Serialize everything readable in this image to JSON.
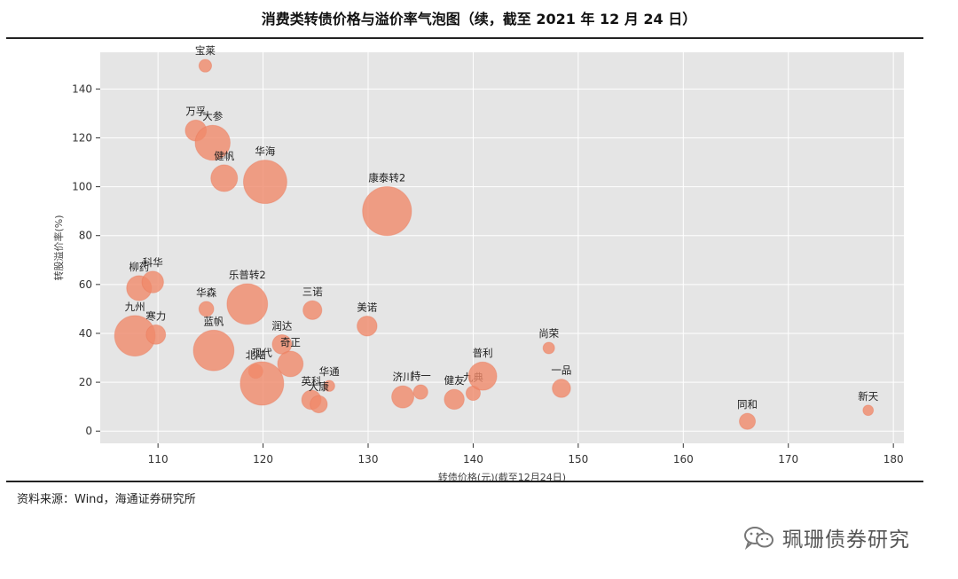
{
  "title": "消费类转债价格与溢价率气泡图（续，截至 2021 年 12 月 24 日）",
  "source": "资料来源：Wind，海通证券研究所",
  "watermark": "珮珊债券研究",
  "chart_data": {
    "type": "scatter",
    "xlabel": "转债价格(元)(截至12月24日)",
    "ylabel": "转股溢价率(%)",
    "xlim": [
      104.5,
      181
    ],
    "ylim": [
      -5,
      155
    ],
    "xticks": [
      110,
      120,
      130,
      140,
      150,
      160,
      170,
      180
    ],
    "yticks": [
      0,
      20,
      40,
      60,
      80,
      100,
      120,
      140
    ],
    "grid": true,
    "colors": {
      "bubble": "#f08a6a",
      "background": "#e5e5e5",
      "grid": "#ffffff"
    },
    "points": [
      {
        "name": "宝莱",
        "x": 114.5,
        "y": 149.5,
        "size": 1
      },
      {
        "name": "万孚",
        "x": 113.6,
        "y": 123,
        "size": 2.5
      },
      {
        "name": "大参",
        "x": 115.2,
        "y": 118,
        "size": 5
      },
      {
        "name": "健帆",
        "x": 116.3,
        "y": 103.5,
        "size": 3.5
      },
      {
        "name": "华海",
        "x": 120.2,
        "y": 102,
        "size": 6.5
      },
      {
        "name": "康泰转2",
        "x": 131.8,
        "y": 90,
        "size": 7.5
      },
      {
        "name": "柳药",
        "x": 108.2,
        "y": 58.5,
        "size": 3.2
      },
      {
        "name": "科华",
        "x": 109.5,
        "y": 61,
        "size": 2.6
      },
      {
        "name": "华森",
        "x": 114.6,
        "y": 50,
        "size": 1.4
      },
      {
        "name": "乐普转2",
        "x": 118.5,
        "y": 52,
        "size": 6
      },
      {
        "name": "三诺",
        "x": 124.7,
        "y": 49.5,
        "size": 2.1
      },
      {
        "name": "九州",
        "x": 107.8,
        "y": 39,
        "size": 6
      },
      {
        "name": "寒力",
        "x": 109.8,
        "y": 39.5,
        "size": 2.2
      },
      {
        "name": "美诺",
        "x": 129.9,
        "y": 43,
        "size": 2.3
      },
      {
        "name": "润达",
        "x": 121.8,
        "y": 35.5,
        "size": 2.2
      },
      {
        "name": "蓝帆",
        "x": 115.3,
        "y": 33,
        "size": 6
      },
      {
        "name": "北陆",
        "x": 119.3,
        "y": 24.5,
        "size": 1.3
      },
      {
        "name": "奇正",
        "x": 122.6,
        "y": 27.5,
        "size": 3.3
      },
      {
        "name": "现代",
        "x": 119.9,
        "y": 19.5,
        "size": 6.5
      },
      {
        "name": "华通",
        "x": 126.3,
        "y": 18.5,
        "size": 0.7
      },
      {
        "name": "英科",
        "x": 124.6,
        "y": 12.8,
        "size": 2.2
      },
      {
        "name": "大康",
        "x": 125.3,
        "y": 11,
        "size": 1.8
      },
      {
        "name": "济川",
        "x": 133.3,
        "y": 14,
        "size": 2.7
      },
      {
        "name": "特一",
        "x": 135,
        "y": 16,
        "size": 1.3
      },
      {
        "name": "健友",
        "x": 138.2,
        "y": 13,
        "size": 2.3
      },
      {
        "name": "九典",
        "x": 140,
        "y": 15.5,
        "size": 1.3
      },
      {
        "name": "普利",
        "x": 140.9,
        "y": 22.5,
        "size": 3.8
      },
      {
        "name": "尚荣",
        "x": 147.2,
        "y": 34,
        "size": 0.8
      },
      {
        "name": "一品",
        "x": 148.4,
        "y": 17.5,
        "size": 2
      },
      {
        "name": "同和",
        "x": 166.1,
        "y": 4,
        "size": 1.6
      },
      {
        "name": "新天",
        "x": 177.6,
        "y": 8.5,
        "size": 0.6
      }
    ]
  }
}
